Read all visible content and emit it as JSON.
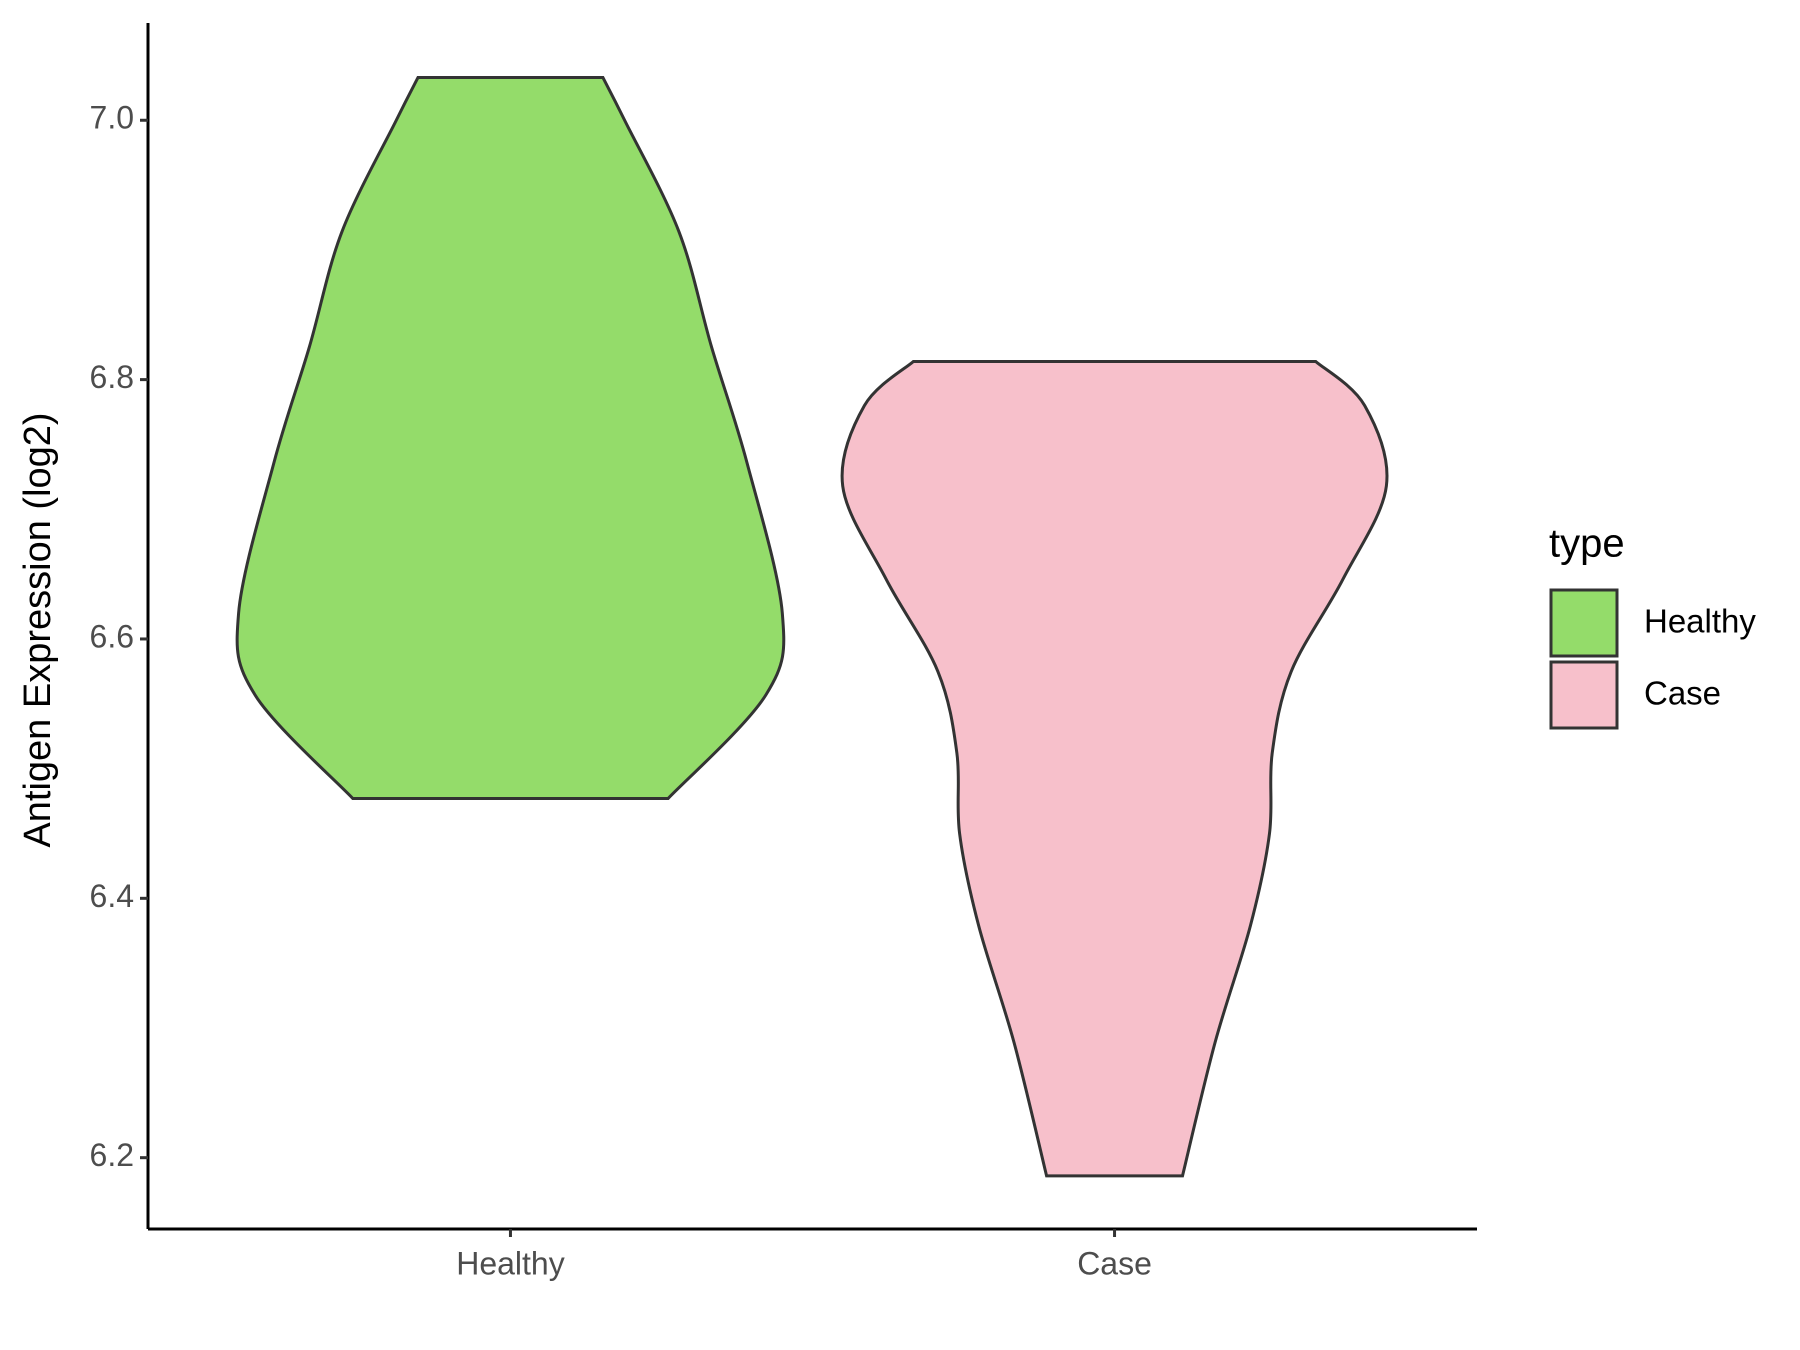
{
  "chart_data": {
    "type": "violin",
    "y_label": "Antigen Expression (log2)",
    "categories": [
      "Healthy",
      "Case"
    ],
    "series": [
      {
        "name": "Healthy",
        "color": "#94dc6a",
        "y": [
          6.477,
          6.557,
          6.62,
          6.736,
          6.825,
          6.914,
          7.0,
          7.033
        ],
        "width": [
          0.58,
          0.94,
          1.0,
          0.87,
          0.74,
          0.62,
          0.42,
          0.34
        ]
      },
      {
        "name": "Case",
        "color": "#f7c0cb",
        "y": [
          6.186,
          6.289,
          6.379,
          6.45,
          6.512,
          6.575,
          6.646,
          6.718,
          6.78,
          6.814
        ],
        "width": [
          0.25,
          0.37,
          0.5,
          0.57,
          0.58,
          0.65,
          0.84,
          1.0,
          0.92,
          0.74
        ]
      }
    ],
    "ylim": [
      6.145,
      7.075
    ],
    "yticks": [
      6.2,
      6.4,
      6.6,
      6.8,
      {
        "value": 7.0,
        "label": "7.0"
      }
    ],
    "legend_title": "type",
    "legend_position": "right",
    "grid": false
  }
}
